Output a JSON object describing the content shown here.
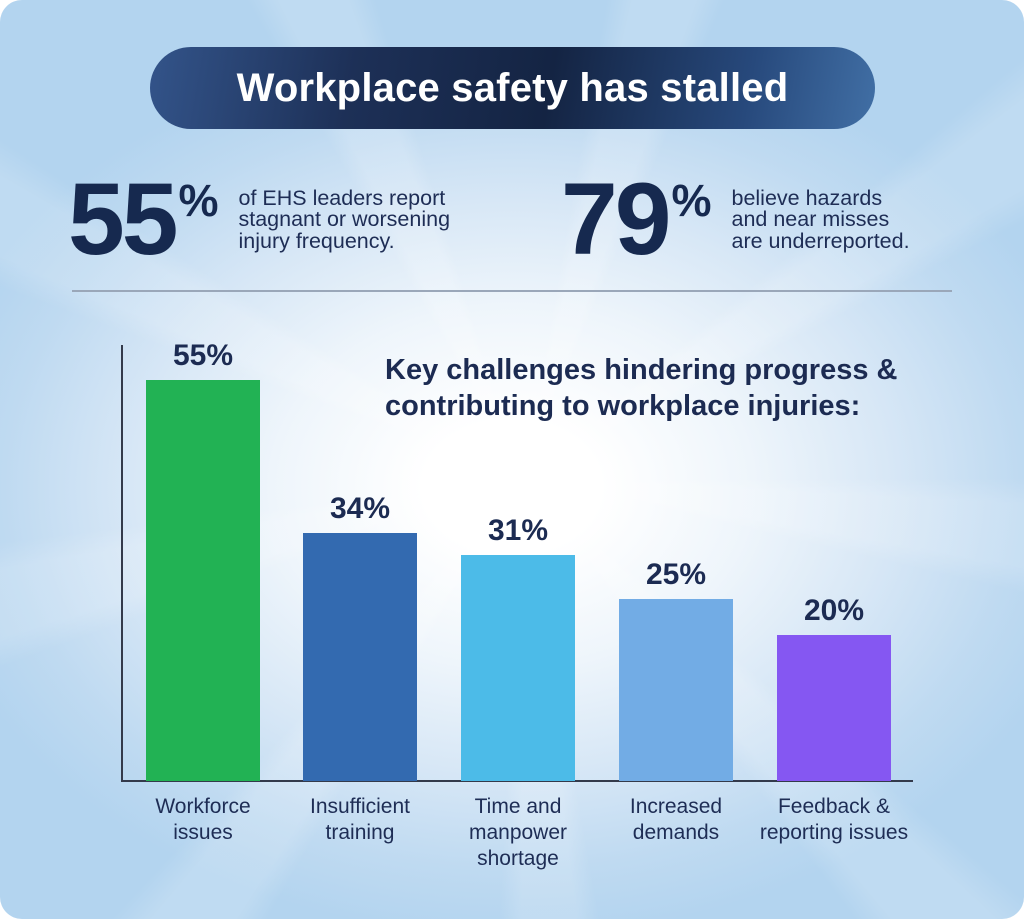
{
  "banner": {
    "title": "Workplace safety has stalled"
  },
  "stats": [
    {
      "value": "55",
      "percent_sign": "%",
      "description": "of EHS leaders report stagnant or worsening injury frequency.",
      "description_lines": [
        "of EHS leaders report",
        "stagnant or worsening",
        "injury frequency."
      ]
    },
    {
      "value": "79",
      "percent_sign": "%",
      "description": "believe hazards and near misses are underreported.",
      "description_lines": [
        "believe hazards",
        "and near misses",
        "are underreported."
      ]
    }
  ],
  "chart_data": {
    "type": "bar",
    "title": "Key challenges hindering progress & contributing to workplace injuries:",
    "categories": [
      "Workforce issues",
      "Insufficient training",
      "Time and manpower shortage",
      "Increased demands",
      "Feedback & reporting issues"
    ],
    "values": [
      55,
      34,
      31,
      25,
      20
    ],
    "value_labels": [
      "55%",
      "34%",
      "31%",
      "25%",
      "20%"
    ],
    "bar_colors": [
      "#22b254",
      "#336ab0",
      "#4cbbe8",
      "#72ace5",
      "#8557f2"
    ],
    "xlabel": "",
    "ylabel": "",
    "ylim": [
      0,
      60
    ],
    "grid": false,
    "legend": false
  },
  "colors": {
    "background_edge": "#b3d4ef",
    "background_center": "#ffffff",
    "banner_navy_dark": "#142443",
    "banner_navy_light": "#416fa5",
    "text_navy": "#1c2b52",
    "stat_navy": "#16294f",
    "divider_gray": "#9aa7b9",
    "axis_dark": "#333a4b"
  }
}
